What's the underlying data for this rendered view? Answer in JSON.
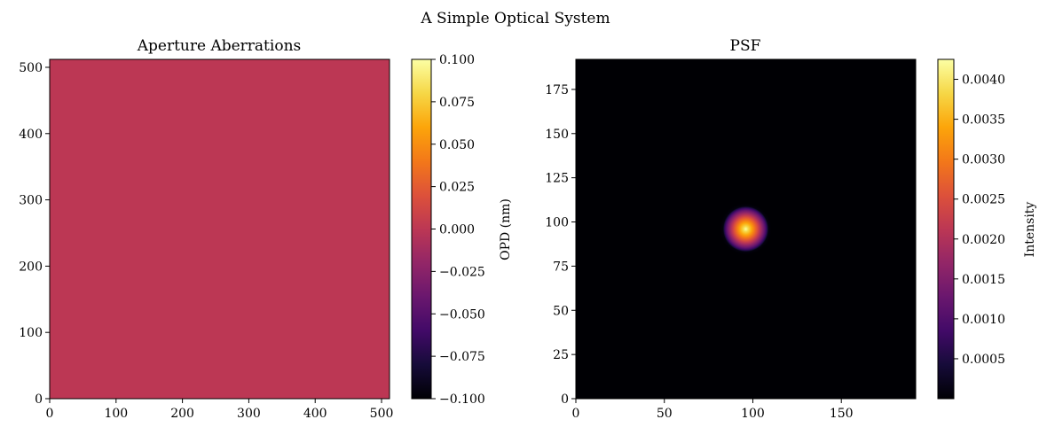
{
  "figure": {
    "title": "A Simple Optical System"
  },
  "chart_data": [
    {
      "type": "heatmap",
      "title": "Aperture Aberrations",
      "xlabel": "",
      "ylabel": "",
      "xlim": [
        0,
        512
      ],
      "ylim": [
        0,
        512
      ],
      "x_ticks": [
        0,
        100,
        200,
        300,
        400,
        500
      ],
      "y_ticks": [
        0,
        100,
        200,
        300,
        400,
        500
      ],
      "field": "uniform",
      "value": 0.0,
      "colormap": "inferno",
      "colorbar": {
        "label": "OPD (nm)",
        "range": [
          -0.1,
          0.1
        ],
        "ticks": [
          -0.1,
          -0.075,
          -0.05,
          -0.025,
          0.0,
          0.025,
          0.05,
          0.075,
          0.1
        ],
        "tick_labels": [
          "−0.100",
          "−0.075",
          "−0.050",
          "−0.025",
          "0.000",
          "0.025",
          "0.050",
          "0.075",
          "0.100"
        ]
      }
    },
    {
      "type": "heatmap",
      "title": "PSF",
      "xlabel": "",
      "ylabel": "",
      "xlim": [
        0,
        192
      ],
      "ylim": [
        0,
        192
      ],
      "x_ticks": [
        0,
        50,
        100,
        150
      ],
      "y_ticks": [
        0,
        25,
        50,
        75,
        100,
        125,
        150,
        175
      ],
      "field": "airy-spot",
      "peak_center": [
        96,
        96
      ],
      "peak_value": 0.00425,
      "colormap": "inferno",
      "colorbar": {
        "label": "Intensity",
        "range": [
          0.0,
          0.00425
        ],
        "ticks": [
          0.0005,
          0.001,
          0.0015,
          0.002,
          0.0025,
          0.003,
          0.0035,
          0.004
        ],
        "tick_labels": [
          "0.0005",
          "0.0010",
          "0.0015",
          "0.0020",
          "0.0025",
          "0.0030",
          "0.0035",
          "0.0040"
        ]
      }
    }
  ]
}
